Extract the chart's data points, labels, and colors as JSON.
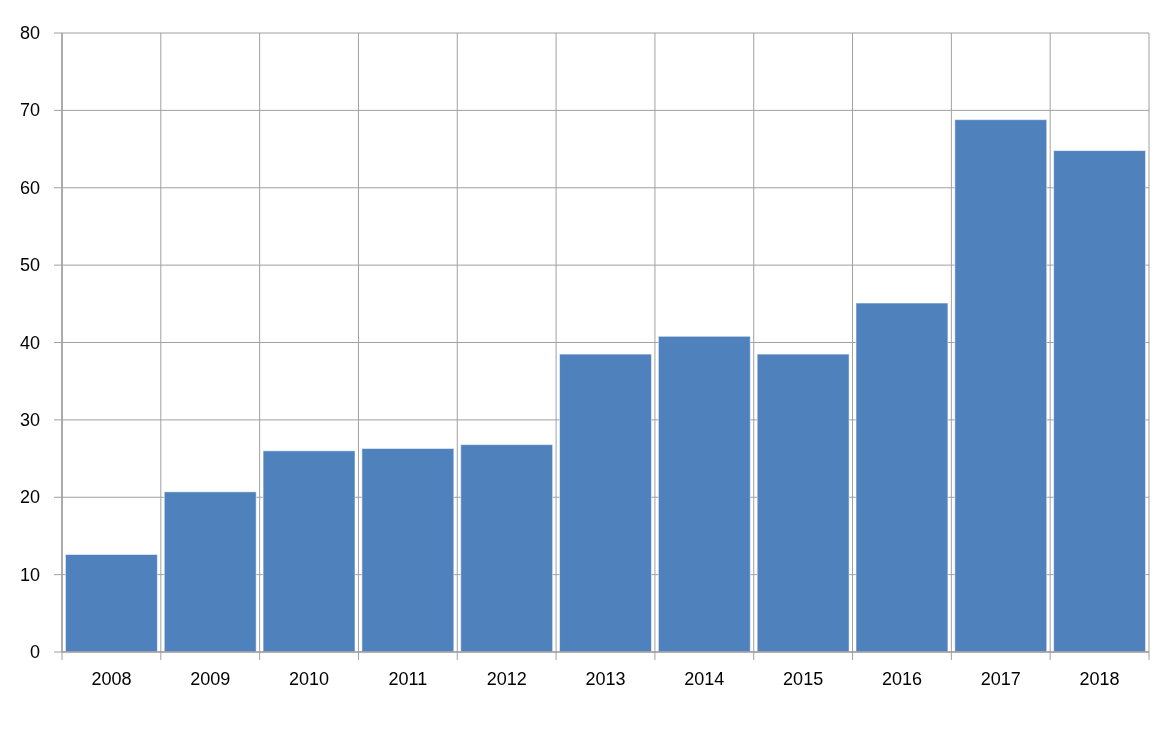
{
  "chart_data": {
    "type": "bar",
    "categories": [
      "2008",
      "2009",
      "2010",
      "2011",
      "2012",
      "2013",
      "2014",
      "2015",
      "2016",
      "2017",
      "2018"
    ],
    "values": [
      12.6,
      20.7,
      26.0,
      26.3,
      26.8,
      38.5,
      40.8,
      38.5,
      45.1,
      68.8,
      64.8
    ],
    "color": "#4f81bd",
    "ylim": [
      0,
      80
    ],
    "yticks": [
      0,
      10,
      20,
      30,
      40,
      50,
      60,
      70,
      80
    ],
    "grid": true
  }
}
